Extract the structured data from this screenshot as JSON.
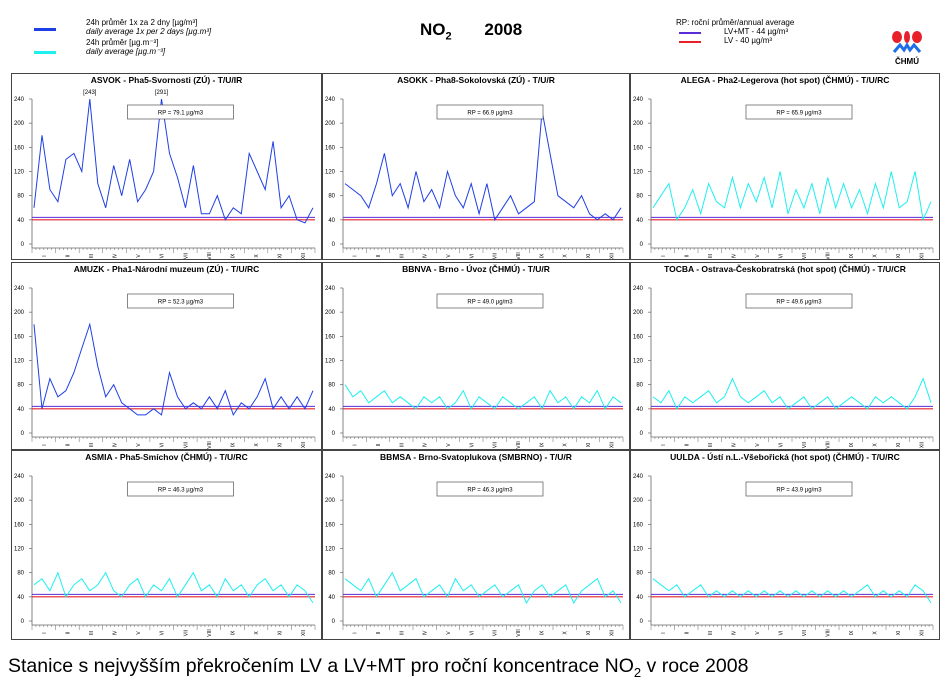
{
  "legend": {
    "series1_line1": "24h průměr 1x za 2 dny [µg/m³]",
    "series1_line2": "daily average 1x per 2 days [µg.m³]",
    "series2_line1": "24h průměr [µg.m⁻³]",
    "series2_line2": "daily average [µg.m⁻³]",
    "rp_label": "RP: roční průměr/annual average",
    "lvmt_label": "LV+MT - 44 µg/m³",
    "lv_label": "LV - 40 µg/m³"
  },
  "header": {
    "pollutant": "NO",
    "pollutant_sub": "2",
    "year": "2008"
  },
  "logo": {
    "text": "ČHMÚ"
  },
  "caption": {
    "text": "Stanice s nejvyšším překročením LV a LV+MT pro roční koncentrace NO",
    "sub": "2",
    "tail": " v roce 2008"
  },
  "colors": {
    "blue": "#1f3fe6",
    "cyan": "#1ef0f0",
    "lv": "#e8202a",
    "lvmt": "#5a2cd8"
  },
  "chart_data": [
    {
      "type": "line",
      "title": "ASVOK - Pha5-Svornosti (ZÚ) - T/U/IR",
      "color": "blue",
      "rp": "RP = 79.1 µg/m3",
      "annotations": [
        "[243]",
        "[291]"
      ],
      "ylim": [
        0,
        240
      ],
      "yticks": [
        0,
        40,
        80,
        120,
        160,
        200,
        240
      ],
      "months": [
        "I",
        "II",
        "III",
        "IV",
        "V",
        "VI",
        "VII",
        "VIII",
        "IX",
        "X",
        "XI",
        "XII"
      ],
      "lv": 40,
      "lvmt": 44,
      "values": [
        60,
        180,
        90,
        70,
        140,
        150,
        120,
        243,
        100,
        60,
        130,
        80,
        140,
        70,
        90,
        120,
        291,
        150,
        110,
        60,
        130,
        50,
        50,
        80,
        40,
        60,
        50,
        150,
        120,
        90,
        170,
        60,
        80,
        40,
        35,
        60
      ]
    },
    {
      "type": "line",
      "title": "ASOKK - Pha8-Sokolovská (ZÚ) - T/U/R",
      "color": "blue",
      "rp": "RP = 66.9 µg/m3",
      "ylim": [
        0,
        240
      ],
      "yticks": [
        0,
        40,
        80,
        120,
        160,
        200,
        240
      ],
      "months": [
        "I",
        "II",
        "III",
        "IV",
        "V",
        "VI",
        "VII",
        "VIII",
        "IX",
        "X",
        "XI",
        "XII"
      ],
      "lv": 40,
      "lvmt": 44,
      "values": [
        100,
        90,
        80,
        60,
        100,
        150,
        80,
        100,
        60,
        120,
        70,
        90,
        60,
        120,
        80,
        60,
        100,
        50,
        100,
        40,
        60,
        80,
        50,
        60,
        70,
        220,
        150,
        80,
        70,
        60,
        80,
        50,
        40,
        50,
        40,
        60
      ]
    },
    {
      "type": "line",
      "title": "ALEGA - Pha2-Legerova (hot spot) (ČHMÚ) - T/U/RC",
      "color": "cyan",
      "rp": "RP = 65.9 µg/m3",
      "ylim": [
        0,
        240
      ],
      "yticks": [
        0,
        40,
        80,
        120,
        160,
        200,
        240
      ],
      "months": [
        "I",
        "II",
        "III",
        "IV",
        "V",
        "VI",
        "VII",
        "VIII",
        "IX",
        "X",
        "XI",
        "XII"
      ],
      "lv": 40,
      "lvmt": 44,
      "values": [
        60,
        80,
        100,
        40,
        60,
        90,
        50,
        100,
        70,
        60,
        110,
        60,
        100,
        70,
        110,
        60,
        120,
        50,
        90,
        60,
        100,
        50,
        110,
        60,
        100,
        60,
        90,
        50,
        100,
        60,
        120,
        60,
        70,
        120,
        40,
        70
      ]
    },
    {
      "type": "line",
      "title": "AMUZK - Pha1-Národní muzeum (ZÚ) - T/U/RC",
      "color": "blue",
      "rp": "RP = 52.3 µg/m3",
      "ylim": [
        0,
        240
      ],
      "yticks": [
        0,
        40,
        80,
        120,
        160,
        200,
        240
      ],
      "months": [
        "I",
        "II",
        "III",
        "IV",
        "V",
        "VI",
        "VII",
        "VIII",
        "IX",
        "X",
        "XI",
        "XII"
      ],
      "lv": 40,
      "lvmt": 44,
      "values": [
        180,
        40,
        90,
        60,
        70,
        100,
        140,
        180,
        110,
        60,
        80,
        50,
        40,
        30,
        30,
        40,
        30,
        100,
        60,
        40,
        50,
        40,
        60,
        40,
        70,
        30,
        50,
        40,
        60,
        90,
        40,
        60,
        40,
        60,
        40,
        70
      ]
    },
    {
      "type": "line",
      "title": "BBNVA - Brno - Úvoz (ČHMÚ) - T/U/R",
      "color": "cyan",
      "rp": "RP = 49.0 µg/m3",
      "ylim": [
        0,
        240
      ],
      "yticks": [
        0,
        40,
        80,
        120,
        160,
        200,
        240
      ],
      "months": [
        "I",
        "II",
        "III",
        "IV",
        "V",
        "VI",
        "VII",
        "VIII",
        "IX",
        "X",
        "XI",
        "XII"
      ],
      "lv": 40,
      "lvmt": 44,
      "values": [
        80,
        60,
        70,
        50,
        60,
        70,
        50,
        60,
        50,
        40,
        60,
        50,
        60,
        40,
        50,
        70,
        40,
        60,
        50,
        40,
        60,
        50,
        40,
        50,
        60,
        40,
        70,
        50,
        60,
        40,
        60,
        50,
        70,
        40,
        60,
        50
      ]
    },
    {
      "type": "line",
      "title": "TOCBA - Ostrava-Českobratrská (hot spot) (ČHMÚ) - T/U/CR",
      "color": "cyan",
      "rp": "RP = 49.6 µg/m3",
      "ylim": [
        0,
        240
      ],
      "yticks": [
        0,
        40,
        80,
        120,
        160,
        200,
        240
      ],
      "months": [
        "I",
        "II",
        "III",
        "IV",
        "V",
        "VI",
        "VII",
        "VIII",
        "IX",
        "X",
        "XI",
        "XII"
      ],
      "lv": 40,
      "lvmt": 44,
      "values": [
        60,
        50,
        70,
        40,
        60,
        50,
        60,
        70,
        50,
        60,
        90,
        60,
        50,
        60,
        70,
        50,
        60,
        40,
        50,
        60,
        40,
        50,
        60,
        40,
        50,
        60,
        50,
        40,
        60,
        50,
        60,
        50,
        40,
        60,
        90,
        50
      ]
    },
    {
      "type": "line",
      "title": "ASMIA - Pha5-Smíchov (ČHMÚ) - T/U/RC",
      "color": "cyan",
      "rp": "RP = 46.3 µg/m3",
      "ylim": [
        0,
        240
      ],
      "yticks": [
        0,
        40,
        80,
        120,
        160,
        200,
        240
      ],
      "months": [
        "I",
        "II",
        "III",
        "IV",
        "V",
        "VI",
        "VII",
        "VIII",
        "IX",
        "X",
        "XI",
        "XII"
      ],
      "lv": 40,
      "lvmt": 44,
      "values": [
        60,
        70,
        50,
        80,
        40,
        60,
        70,
        50,
        60,
        80,
        50,
        40,
        60,
        70,
        40,
        60,
        50,
        70,
        40,
        60,
        80,
        50,
        60,
        40,
        70,
        50,
        60,
        40,
        60,
        70,
        50,
        60,
        40,
        60,
        50,
        30
      ]
    },
    {
      "type": "line",
      "title": "BBMSA - Brno-Svatoplukova (SMBRNO) - T/U/R",
      "color": "cyan",
      "rp": "RP = 46.3 µg/m3",
      "ylim": [
        0,
        240
      ],
      "yticks": [
        0,
        40,
        80,
        120,
        160,
        200,
        240
      ],
      "months": [
        "I",
        "II",
        "III",
        "IV",
        "V",
        "VI",
        "VII",
        "VIII",
        "IX",
        "X",
        "XI",
        "XII"
      ],
      "lv": 40,
      "lvmt": 44,
      "values": [
        70,
        60,
        50,
        70,
        40,
        60,
        80,
        50,
        60,
        70,
        40,
        50,
        60,
        40,
        70,
        50,
        60,
        40,
        50,
        60,
        40,
        50,
        60,
        30,
        50,
        60,
        40,
        50,
        60,
        30,
        50,
        60,
        70,
        40,
        50,
        30
      ]
    },
    {
      "type": "line",
      "title": "UULDA - Ústí n.L.-Všebořická (hot spot) (ČHMÚ) - T/U/RC",
      "color": "cyan",
      "rp": "RP = 43.9 µg/m3",
      "ylim": [
        0,
        240
      ],
      "yticks": [
        0,
        40,
        80,
        120,
        160,
        200,
        240
      ],
      "months": [
        "I",
        "II",
        "III",
        "IV",
        "V",
        "VI",
        "VII",
        "VIII",
        "IX",
        "X",
        "XI",
        "XII"
      ],
      "lv": 40,
      "lvmt": 44,
      "values": [
        70,
        60,
        50,
        60,
        40,
        50,
        60,
        40,
        50,
        40,
        50,
        40,
        50,
        40,
        50,
        40,
        50,
        40,
        50,
        40,
        50,
        40,
        50,
        40,
        50,
        40,
        50,
        60,
        40,
        50,
        40,
        50,
        40,
        60,
        50,
        30
      ]
    }
  ]
}
